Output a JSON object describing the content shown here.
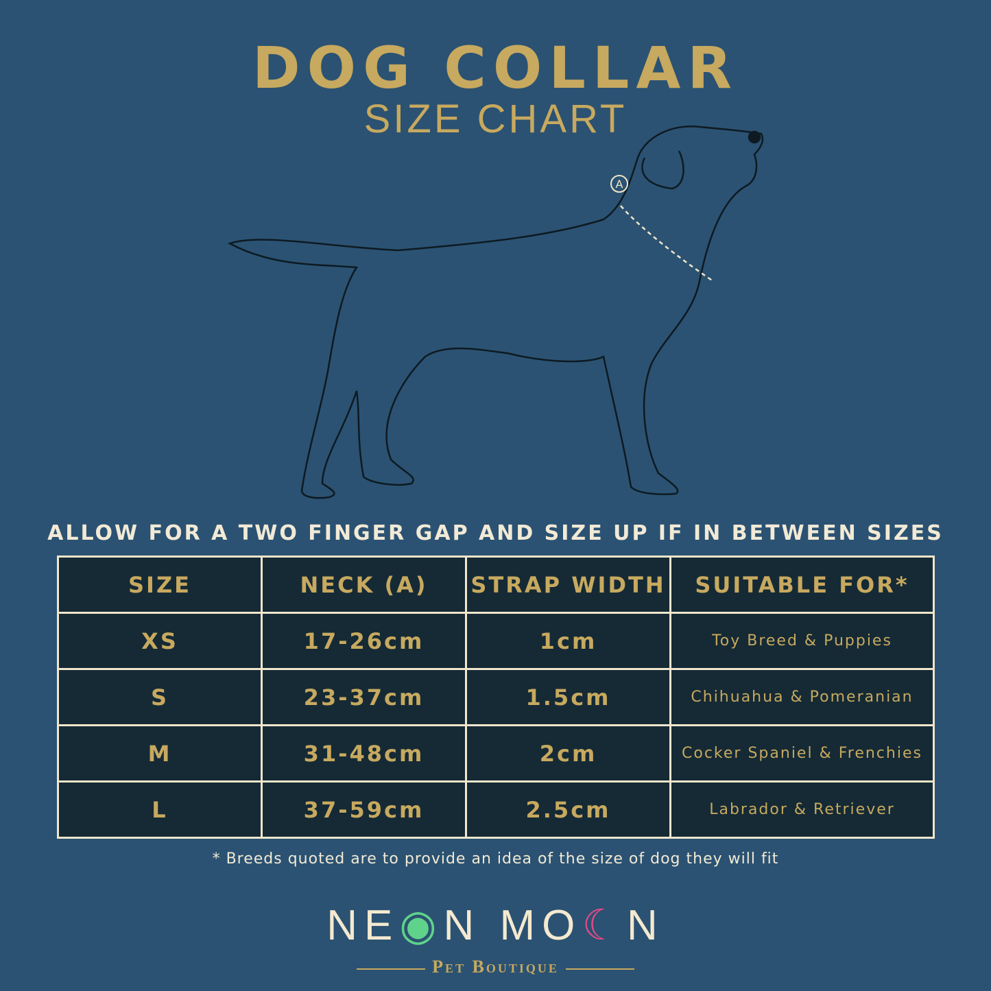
{
  "header": {
    "title": "DOG COLLAR",
    "subtitle": "SIZE CHART"
  },
  "diagram": {
    "marker": "A"
  },
  "note": "ALLOW FOR A TWO FINGER GAP AND SIZE UP IF IN BETWEEN SIZES",
  "table": {
    "headers": [
      "SIZE",
      "NECK (A)",
      "STRAP WIDTH",
      "SUITABLE FOR*"
    ],
    "rows": [
      [
        "XS",
        "17-26cm",
        "1cm",
        "Toy Breed & Puppies"
      ],
      [
        "S",
        "23-37cm",
        "1.5cm",
        "Chihuahua & Pomeranian"
      ],
      [
        "M",
        "31-48cm",
        "2cm",
        "Cocker Spaniel & Frenchies"
      ],
      [
        "L",
        "37-59cm",
        "2.5cm",
        "Labrador & Retriever"
      ]
    ]
  },
  "footnote": "* Breeds quoted are to provide an idea of the size of dog they will fit",
  "brand": {
    "name_a": "NE",
    "name_b": "N",
    "name_c": "MO",
    "name_d": "N",
    "tagline": "Pet Boutique"
  },
  "colors": {
    "background": "#2b5272",
    "gold": "#c7a95f",
    "table": "#152a35",
    "border": "#f0e6cc"
  }
}
